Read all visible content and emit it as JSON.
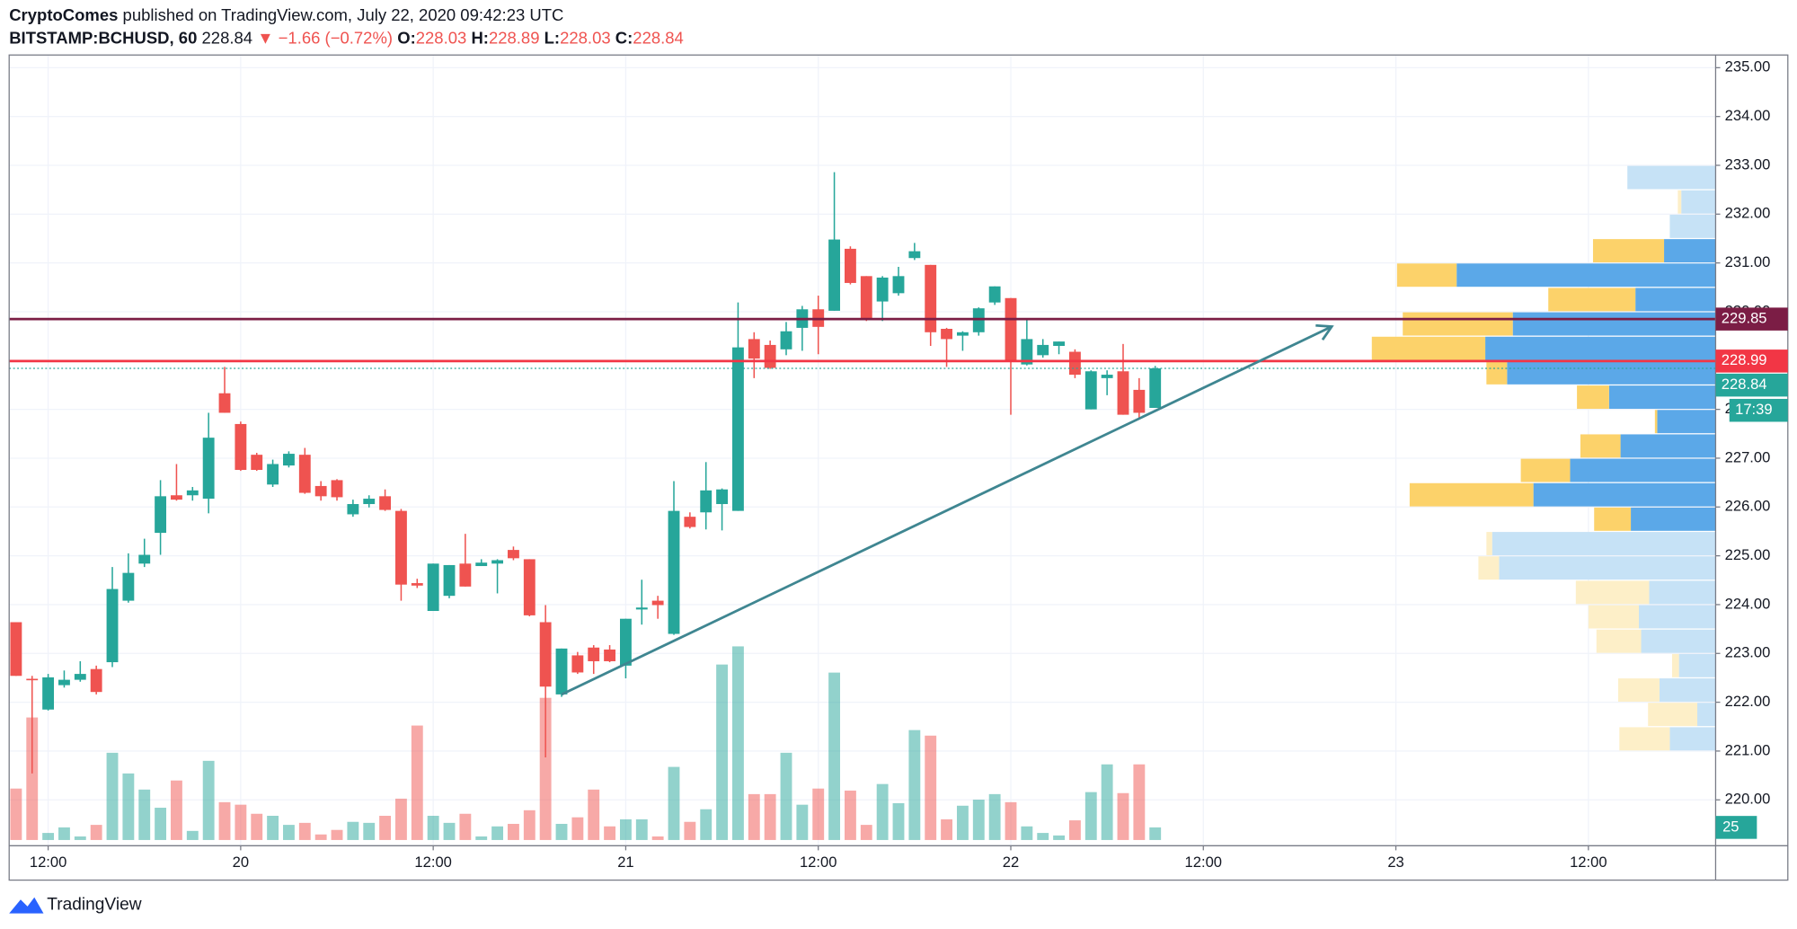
{
  "header": {
    "publisher": "CryptoComes",
    "published": "published on TradingView.com, July 22, 2020 09:42:23 UTC",
    "symbol": "BITSTAMP:BCHUSD, 60",
    "change": "▼ −1.66 (−0.72%)",
    "open_label": "O:",
    "high_label": "H:",
    "low_label": "L:",
    "close_label": "C:",
    "countdown": "17:39",
    "brand": "TradingView"
  },
  "chart_data": {
    "type": "candlestick",
    "open": [
      223.64,
      222.48,
      221.85,
      222.35,
      222.46,
      222.68,
      222.82,
      224.08,
      224.84,
      225.47,
      226.24,
      226.24,
      226.17,
      228.33,
      227.7,
      227.07,
      226.46,
      226.85,
      227.07,
      226.43,
      226.55,
      225.85,
      226.06,
      226.22,
      225.92,
      224.44,
      223.87,
      224.18,
      224.84,
      224.79,
      224.84,
      225.12,
      224.93,
      223.64,
      222.16,
      222.96,
      223.12,
      223.08,
      222.75,
      223.9,
      224.08,
      223.4,
      225.8,
      225.89,
      226.06,
      225.92,
      229.44,
      229.32,
      229.23,
      229.67,
      230.05,
      230.02,
      231.29,
      230.73,
      230.21,
      230.38,
      231.1,
      230.96,
      229.65,
      229.51,
      229.58,
      230.19,
      230.28,
      228.92,
      229.11,
      229.3,
      229.18,
      228.0,
      228.64,
      228.78,
      228.4,
      228.03
    ],
    "high": [
      223.64,
      222.54,
      222.58,
      222.65,
      222.84,
      222.75,
      224.77,
      225.05,
      225.35,
      226.55,
      226.88,
      226.41,
      227.93,
      228.87,
      227.75,
      227.11,
      226.97,
      227.14,
      227.21,
      226.53,
      226.57,
      226.15,
      226.24,
      226.36,
      225.96,
      224.53,
      224.84,
      224.81,
      225.45,
      224.93,
      224.93,
      225.19,
      224.93,
      223.99,
      223.1,
      223.03,
      223.17,
      223.17,
      223.71,
      224.51,
      224.18,
      226.53,
      225.89,
      226.92,
      226.38,
      230.19,
      229.58,
      229.41,
      229.79,
      230.12,
      230.33,
      232.86,
      231.34,
      230.73,
      230.73,
      230.92,
      231.41,
      230.96,
      229.67,
      229.6,
      230.09,
      230.52,
      230.28,
      229.84,
      229.44,
      229.39,
      229.23,
      228.8,
      228.8,
      229.34,
      228.64,
      228.89
    ],
    "low": [
      222.54,
      220.54,
      221.83,
      222.3,
      222.42,
      222.16,
      222.72,
      224.04,
      224.77,
      225.02,
      226.13,
      226.13,
      225.87,
      227.93,
      226.74,
      226.74,
      226.41,
      226.81,
      226.27,
      226.13,
      226.13,
      225.8,
      225.99,
      225.92,
      224.08,
      224.34,
      223.87,
      224.13,
      224.37,
      224.79,
      224.23,
      224.91,
      223.76,
      220.87,
      222.11,
      222.58,
      222.58,
      222.82,
      222.49,
      223.59,
      223.71,
      223.38,
      225.56,
      225.54,
      225.52,
      225.92,
      228.64,
      228.83,
      229.11,
      229.2,
      229.13,
      230.02,
      230.56,
      229.81,
      229.81,
      230.33,
      231.06,
      229.3,
      228.87,
      229.2,
      229.51,
      230.14,
      227.89,
      228.9,
      229.06,
      229.13,
      228.64,
      228.0,
      228.29,
      227.89,
      227.79,
      228.03
    ],
    "close": [
      222.54,
      222.45,
      222.51,
      222.46,
      222.58,
      222.21,
      224.32,
      224.65,
      225.02,
      226.22,
      226.15,
      226.34,
      227.42,
      227.93,
      226.76,
      226.76,
      226.88,
      227.09,
      226.29,
      226.22,
      226.2,
      226.06,
      226.17,
      225.94,
      224.41,
      224.39,
      224.84,
      224.81,
      224.37,
      224.86,
      224.91,
      224.95,
      223.78,
      222.32,
      223.1,
      222.61,
      222.84,
      222.84,
      223.71,
      223.94,
      223.99,
      225.92,
      225.59,
      226.34,
      226.36,
      229.27,
      229.04,
      228.85,
      229.6,
      230.05,
      229.69,
      231.48,
      230.59,
      229.84,
      230.7,
      230.73,
      231.24,
      229.58,
      229.44,
      229.58,
      230.07,
      230.52,
      228.97,
      229.44,
      229.32,
      229.39,
      228.71,
      228.78,
      228.71,
      227.89,
      227.93,
      228.84
    ],
    "volume": [
      102,
      243,
      14,
      25,
      7,
      30,
      173,
      132,
      100,
      64,
      118,
      18,
      157,
      75,
      70,
      52,
      48,
      30,
      34,
      11,
      20,
      36,
      34,
      48,
      82,
      227,
      48,
      34,
      52,
      7,
      27,
      32,
      59,
      282,
      32,
      45,
      100,
      27,
      41,
      41,
      7,
      145,
      36,
      61,
      348,
      384,
      91,
      91,
      173,
      70,
      102,
      332,
      98,
      30,
      111,
      73,
      218,
      207,
      41,
      68,
      80,
      91,
      75,
      27,
      14,
      9,
      39,
      95,
      150,
      93,
      150,
      25
    ],
    "up_color": "#26a69a",
    "down_color": "#ef5350",
    "xlim": [
      -0.43,
      105.93
    ],
    "xticks": [
      {
        "value": 2,
        "label": "12:00"
      },
      {
        "value": 14,
        "label": "20"
      },
      {
        "value": 26,
        "label": "12:00"
      },
      {
        "value": 38,
        "label": "21"
      },
      {
        "value": 50,
        "label": "12:00"
      },
      {
        "value": 62,
        "label": "22"
      },
      {
        "value": 74,
        "label": "12:00"
      },
      {
        "value": 86,
        "label": "23"
      },
      {
        "value": 98,
        "label": "12:00"
      }
    ],
    "ylim": [
      219.06,
      235.26
    ],
    "yticks": [
      {
        "value": 220,
        "label": "220.00"
      },
      {
        "value": 221,
        "label": "221.00"
      },
      {
        "value": 222,
        "label": "222.00"
      },
      {
        "value": 223,
        "label": "223.00"
      },
      {
        "value": 224,
        "label": "224.00"
      },
      {
        "value": 225,
        "label": "225.00"
      },
      {
        "value": 226,
        "label": "226.00"
      },
      {
        "value": 227,
        "label": "227.00"
      },
      {
        "value": 228,
        "label": "228.00"
      },
      {
        "value": 229,
        "label": "229.00"
      },
      {
        "value": 230,
        "label": "230.00"
      },
      {
        "value": 231,
        "label": "231.00"
      },
      {
        "value": 232,
        "label": "232.00"
      },
      {
        "value": 233,
        "label": "233.00"
      },
      {
        "value": 234,
        "label": "234.00"
      },
      {
        "value": 235,
        "label": "235.00"
      }
    ],
    "volume_ylim": [
      0,
      400
    ],
    "grid": true,
    "levels": [
      {
        "value": 229.85,
        "color": "#7b1d45"
      },
      {
        "value": 228.99,
        "color": "#f23645"
      }
    ],
    "volume_profile": {
      "xlim": [
        0,
        300
      ],
      "row_size": 0.5,
      "value_area": [
        225.5,
        231.5
      ],
      "up_color": "#5ba8e8",
      "down_color": "#fcd26a",
      "up_color_light": "#c6e2f6",
      "down_color_light": "#fdefc8",
      "rows": [
        {
          "price": 233.0,
          "up": 77,
          "down": 0
        },
        {
          "price": 232.5,
          "up": 30,
          "down": 3
        },
        {
          "price": 232.0,
          "up": 40,
          "down": 0
        },
        {
          "price": 231.5,
          "up": 45,
          "down": 62
        },
        {
          "price": 231.0,
          "up": 226,
          "down": 52
        },
        {
          "price": 230.5,
          "up": 70,
          "down": 76
        },
        {
          "price": 230.0,
          "up": 177,
          "down": 96
        },
        {
          "price": 229.5,
          "up": 201,
          "down": 99
        },
        {
          "price": 229.0,
          "up": 182,
          "down": 18
        },
        {
          "price": 228.5,
          "up": 93,
          "down": 28
        },
        {
          "price": 228.0,
          "up": 51,
          "down": 2
        },
        {
          "price": 227.5,
          "up": 83,
          "down": 35
        },
        {
          "price": 227.0,
          "up": 127,
          "down": 43
        },
        {
          "price": 226.5,
          "up": 159,
          "down": 108
        },
        {
          "price": 226.0,
          "up": 74,
          "down": 32
        },
        {
          "price": 225.5,
          "up": 195,
          "down": 5
        },
        {
          "price": 225.0,
          "up": 189,
          "down": 18
        },
        {
          "price": 224.5,
          "up": 58,
          "down": 64
        },
        {
          "price": 224.0,
          "up": 67,
          "down": 44
        },
        {
          "price": 223.5,
          "up": 65,
          "down": 39
        },
        {
          "price": 223.0,
          "up": 32,
          "down": 6
        },
        {
          "price": 222.5,
          "up": 49,
          "down": 36
        },
        {
          "price": 222.0,
          "up": 16,
          "down": 43
        },
        {
          "price": 221.5,
          "up": 40,
          "down": 44
        }
      ]
    }
  }
}
